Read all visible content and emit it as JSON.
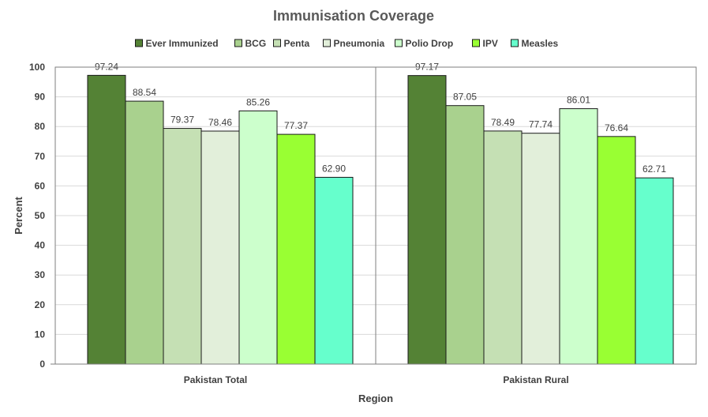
{
  "chart_data": {
    "type": "bar",
    "title": "Immunisation Coverage",
    "xlabel": "Region",
    "ylabel": "Percent",
    "ylim": [
      0,
      100
    ],
    "yticks": [
      0,
      10,
      20,
      30,
      40,
      50,
      60,
      70,
      80,
      90,
      100
    ],
    "categories": [
      "Pakistan Total",
      "Pakistan Rural"
    ],
    "grid": true,
    "legend": "top",
    "series": [
      {
        "name": "Ever Immunized",
        "color": "#548235",
        "values": [
          97.24,
          97.17
        ],
        "labels": [
          "97.24",
          "97.17"
        ]
      },
      {
        "name": "BCG",
        "color": "#a9d18e",
        "values": [
          88.54,
          87.05
        ],
        "labels": [
          "88.54",
          "87.05"
        ]
      },
      {
        "name": "Penta",
        "color": "#c5e0b4",
        "values": [
          79.37,
          78.49
        ],
        "labels": [
          "79.37",
          "78.49"
        ]
      },
      {
        "name": "Pneumonia",
        "color": "#e2efda",
        "values": [
          78.46,
          77.74
        ],
        "labels": [
          "78.46",
          "77.74"
        ]
      },
      {
        "name": "Polio Drop",
        "color": "#ccffcc",
        "values": [
          85.26,
          86.01
        ],
        "labels": [
          "85.26",
          "86.01"
        ]
      },
      {
        "name": "IPV",
        "color": "#99ff33",
        "values": [
          77.37,
          76.64
        ],
        "labels": [
          "77.37",
          "76.64"
        ]
      },
      {
        "name": "Measles",
        "color": "#66ffcc",
        "values": [
          62.9,
          62.71
        ],
        "labels": [
          "62.90",
          "62.71"
        ]
      }
    ]
  }
}
